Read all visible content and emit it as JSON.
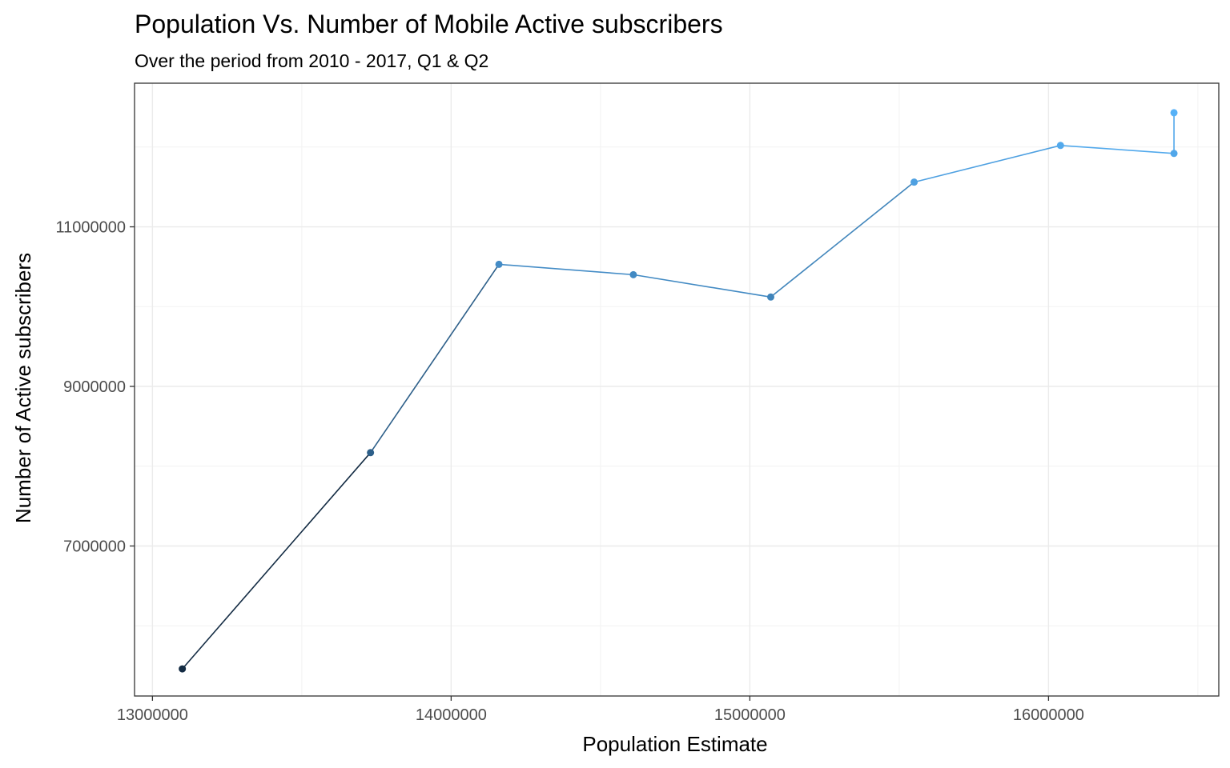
{
  "chart_data": {
    "type": "line",
    "title": "Population Vs. Number of Mobile Active subscribers",
    "subtitle": "Over the period from 2010 - 2017, Q1 & Q2",
    "xlabel": "Population Estimate",
    "ylabel": "Number of Active subscribers",
    "xlim": [
      12940000,
      16570000
    ],
    "ylim": [
      5120000,
      12800000
    ],
    "x_ticks": [
      13000000,
      14000000,
      15000000,
      16000000
    ],
    "x_tick_labels": [
      "13000000",
      "14000000",
      "15000000",
      "16000000"
    ],
    "y_ticks": [
      7000000,
      9000000,
      11000000
    ],
    "y_tick_labels": [
      "7000000",
      "9000000",
      "11000000"
    ],
    "grid": true,
    "color_gradient": [
      "#132b43",
      "#56b1f7"
    ],
    "points": [
      {
        "x": 13100000,
        "y": 5460000
      },
      {
        "x": 13730000,
        "y": 8170000
      },
      {
        "x": 14160000,
        "y": 10530000
      },
      {
        "x": 14610000,
        "y": 10400000
      },
      {
        "x": 15070000,
        "y": 10120000
      },
      {
        "x": 15550000,
        "y": 11560000
      },
      {
        "x": 16040000,
        "y": 12020000
      },
      {
        "x": 16420000,
        "y": 11920000
      },
      {
        "x": 16420000,
        "y": 12430000
      }
    ]
  }
}
